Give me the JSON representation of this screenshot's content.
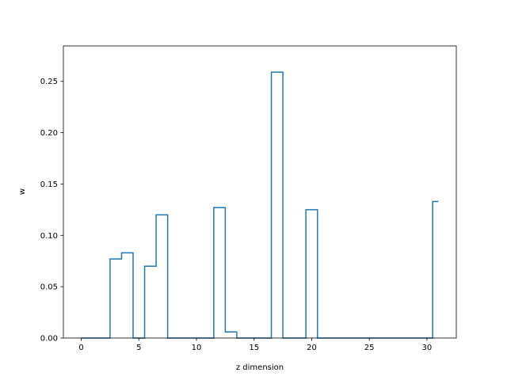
{
  "chart_data": {
    "type": "line",
    "drawstyle": "steps-mid",
    "title": "",
    "xlabel": "z dimension",
    "ylabel": "w",
    "xlim": [
      -1.55,
      32.55
    ],
    "ylim": [
      0.0,
      0.2845
    ],
    "xticks": [
      0,
      5,
      10,
      15,
      20,
      25,
      30
    ],
    "yticks": [
      0.0,
      0.05,
      0.1,
      0.15,
      0.2,
      0.25
    ],
    "xtick_labels": [
      "0",
      "5",
      "10",
      "15",
      "20",
      "25",
      "30"
    ],
    "ytick_labels": [
      "0.00",
      "0.05",
      "0.10",
      "0.15",
      "0.20",
      "0.25"
    ],
    "grid": false,
    "line_color": "#1f77b4",
    "series": [
      {
        "x": [
          0,
          1,
          2,
          3,
          4,
          5,
          6,
          7,
          8,
          9,
          10,
          11,
          12,
          13,
          14,
          15,
          16,
          17,
          18,
          19,
          20,
          21,
          22,
          23,
          24,
          25,
          26,
          27,
          28,
          29,
          30,
          31
        ],
        "values": [
          0,
          0,
          0,
          0.077,
          0.083,
          0,
          0.07,
          0.12,
          0,
          0,
          0,
          0,
          0.127,
          0.006,
          0,
          0,
          0,
          0.259,
          0,
          0,
          0.125,
          0,
          0,
          0,
          0,
          0,
          0,
          0,
          0,
          0,
          0,
          0.133
        ]
      }
    ]
  }
}
